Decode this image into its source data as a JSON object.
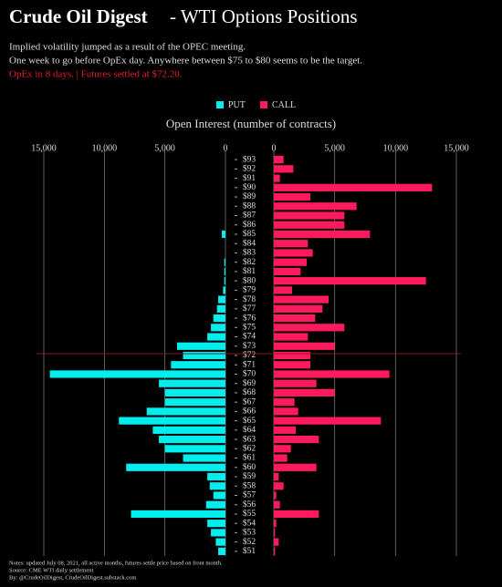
{
  "chart_data": {
    "type": "butterfly_bar",
    "title": "Crude Oil Digest",
    "title_suffix": "- WTI Options Positions",
    "subtitle_lines": [
      "Implied volatility jumped as a result of the OPEC meeting.",
      "One week to go before OpEx day. Anywhere between $75 to $80 seems to be the target."
    ],
    "highlight": "OpEx in 8 days. | Futures settled at $72.20.",
    "x_label": "Open Interest (number of contracts)",
    "notes": [
      "Notes: updated July 08, 2021, all active months, futures settle price based on front month.",
      "Source: CME WTI daily settlement",
      "By: @CrudeOilDigest, CrudeOilDigest.substack.com"
    ],
    "reference_value": 72.2,
    "reference_color": "#8b1a1a",
    "xlim": [
      0,
      15000
    ],
    "xticks": [
      0,
      {
        "value": 5000,
        "label": "5,000"
      },
      {
        "value": 10000,
        "label": "10,000"
      },
      {
        "value": 15000,
        "label": "15,000"
      }
    ],
    "ylim": [
      50.5,
      93.5
    ],
    "y": [
      93,
      92,
      91,
      90,
      89,
      88,
      87,
      86,
      85,
      84,
      83,
      82,
      81,
      80,
      79,
      78,
      77,
      76,
      75,
      74,
      73,
      72,
      71,
      70,
      69,
      68,
      67,
      66,
      65,
      64,
      63,
      62,
      61,
      60,
      59,
      58,
      57,
      56,
      55,
      54,
      53,
      52,
      51
    ],
    "yticks": [
      {
        "value": 93,
        "label": "$93"
      },
      {
        "value": 92,
        "label": "$92"
      },
      {
        "value": 91,
        "label": "$91"
      },
      {
        "value": 90,
        "label": "$90"
      },
      {
        "value": 89,
        "label": "$89"
      },
      {
        "value": 88,
        "label": "$88"
      },
      {
        "value": 87,
        "label": "$87"
      },
      {
        "value": 86,
        "label": "$86"
      },
      {
        "value": 85,
        "label": "$85"
      },
      {
        "value": 84,
        "label": "$84"
      },
      {
        "value": 83,
        "label": "$83"
      },
      {
        "value": 82,
        "label": "$82"
      },
      {
        "value": 81,
        "label": "$81"
      },
      {
        "value": 80,
        "label": "$80"
      },
      {
        "value": 79,
        "label": "$79"
      },
      {
        "value": 78,
        "label": "$78"
      },
      {
        "value": 77,
        "label": "$77"
      },
      {
        "value": 76,
        "label": "$76"
      },
      {
        "value": 75,
        "label": "$75"
      },
      {
        "value": 74,
        "label": "$74"
      },
      {
        "value": 73,
        "label": "$73"
      },
      {
        "value": 72,
        "label": "$72"
      },
      {
        "value": 71,
        "label": "$71"
      },
      {
        "value": 70,
        "label": "$70"
      },
      {
        "value": 69,
        "label": "$69"
      },
      {
        "value": 68,
        "label": "$68"
      },
      {
        "value": 67,
        "label": "$67"
      },
      {
        "value": 66,
        "label": "$66"
      },
      {
        "value": 65,
        "label": "$65"
      },
      {
        "value": 64,
        "label": "$64"
      },
      {
        "value": 63,
        "label": "$63"
      },
      {
        "value": 62,
        "label": "$62"
      },
      {
        "value": 61,
        "label": "$61"
      },
      {
        "value": 60,
        "label": "$60"
      },
      {
        "value": 59,
        "label": "$59"
      },
      {
        "value": 58,
        "label": "$58"
      },
      {
        "value": 57,
        "label": "$57"
      },
      {
        "value": 56,
        "label": "$56"
      },
      {
        "value": 55,
        "label": "$55"
      },
      {
        "value": 54,
        "label": "$54"
      },
      {
        "value": 53,
        "label": "$53"
      },
      {
        "value": 52,
        "label": "$52"
      },
      {
        "value": 51,
        "label": "$51"
      }
    ],
    "series": [
      {
        "name": "PUT",
        "color": "#00eeee",
        "values": [
          0,
          0,
          0,
          0,
          0,
          0,
          0,
          0,
          300,
          0,
          0,
          100,
          100,
          100,
          200,
          600,
          700,
          1000,
          1200,
          1500,
          4000,
          3500,
          4500,
          14500,
          5500,
          5000,
          5000,
          6500,
          8800,
          6000,
          5500,
          5000,
          3500,
          8200,
          1500,
          1300,
          1000,
          1600,
          7800,
          1500,
          1200,
          800,
          600
        ]
      },
      {
        "name": "CALL",
        "color": "#ff1a5e",
        "values": [
          800,
          1600,
          500,
          13000,
          3000,
          6800,
          5800,
          5800,
          7900,
          2800,
          3200,
          2700,
          2200,
          12500,
          1500,
          4500,
          4000,
          3400,
          5800,
          2800,
          5000,
          3000,
          3000,
          9500,
          3500,
          5000,
          1700,
          2000,
          8800,
          1800,
          3700,
          1400,
          1100,
          3500,
          400,
          800,
          200,
          500,
          3700,
          200,
          100,
          400,
          100
        ]
      }
    ]
  }
}
